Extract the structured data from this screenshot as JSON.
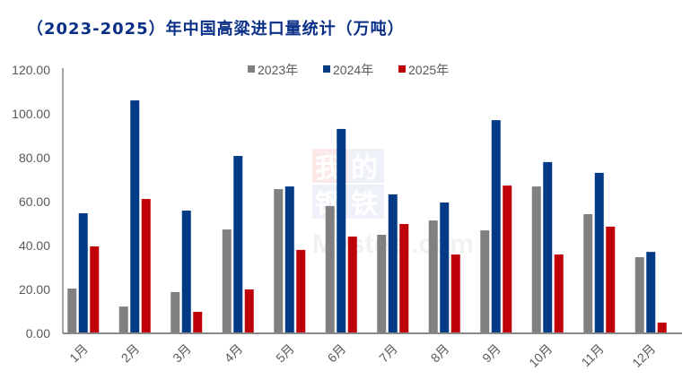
{
  "chart_data": {
    "type": "bar",
    "title": "（2023-2025）年中国高粱进口量统计（万吨）",
    "xlabel": "",
    "ylabel": "",
    "ylim": [
      0,
      120
    ],
    "yticks": [
      "0.00",
      "20.00",
      "40.00",
      "60.00",
      "80.00",
      "100.00",
      "120.00"
    ],
    "grid": false,
    "legend_position": "top-center",
    "categories": [
      "1月",
      "2月",
      "3月",
      "4月",
      "5月",
      "6月",
      "7月",
      "8月",
      "9月",
      "10月",
      "11月",
      "12月"
    ],
    "series": [
      {
        "name": "2023年",
        "color": "#808080",
        "values": [
          20.4,
          12.2,
          18.8,
          47.3,
          65.7,
          58.0,
          44.9,
          51.4,
          46.9,
          66.9,
          54.3,
          34.7
        ]
      },
      {
        "name": "2024年",
        "color": "#023a86",
        "values": [
          54.7,
          106.1,
          55.9,
          80.8,
          66.9,
          93.1,
          63.3,
          59.6,
          97.1,
          78.0,
          73.1,
          37.1
        ]
      },
      {
        "name": "2025年",
        "color": "#c00008",
        "values": [
          39.6,
          61.2,
          9.8,
          20.0,
          38.0,
          44.1,
          49.8,
          35.9,
          67.3,
          35.9,
          48.6,
          4.9
        ]
      }
    ]
  },
  "watermark": {
    "chars": [
      "我",
      "的",
      "钢",
      "铁"
    ],
    "text": "Mysteel.com"
  }
}
